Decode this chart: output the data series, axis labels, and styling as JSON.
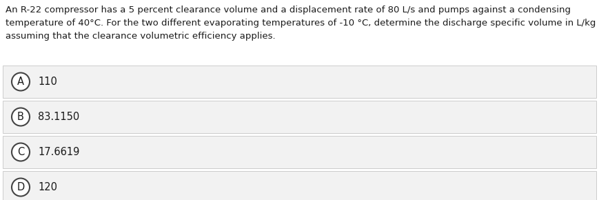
{
  "question_text_lines": [
    "An R-22 compressor has a 5 percent clearance volume and a displacement rate of 80 L/s and pumps against a condensing",
    "temperature of 40°C. For the two different evaporating temperatures of -10 °C, determine the discharge specific volume in L/kg",
    "assuming that the clearance volumetric efficiency applies."
  ],
  "options": [
    {
      "label": "A",
      "text": "110"
    },
    {
      "label": "B",
      "text": "83.1150"
    },
    {
      "label": "C",
      "text": "17.6619"
    },
    {
      "label": "D",
      "text": "120"
    }
  ],
  "background_color": "#ffffff",
  "option_bg_color": "#f2f2f2",
  "option_border_color": "#cccccc",
  "text_color": "#1a1a1a",
  "circle_edge_color": "#444444",
  "circle_face_color": "#ffffff",
  "question_fontsize": 9.5,
  "option_fontsize": 10.5,
  "label_fontsize": 10.5,
  "fig_width": 8.69,
  "fig_height": 2.9,
  "dpi": 100
}
